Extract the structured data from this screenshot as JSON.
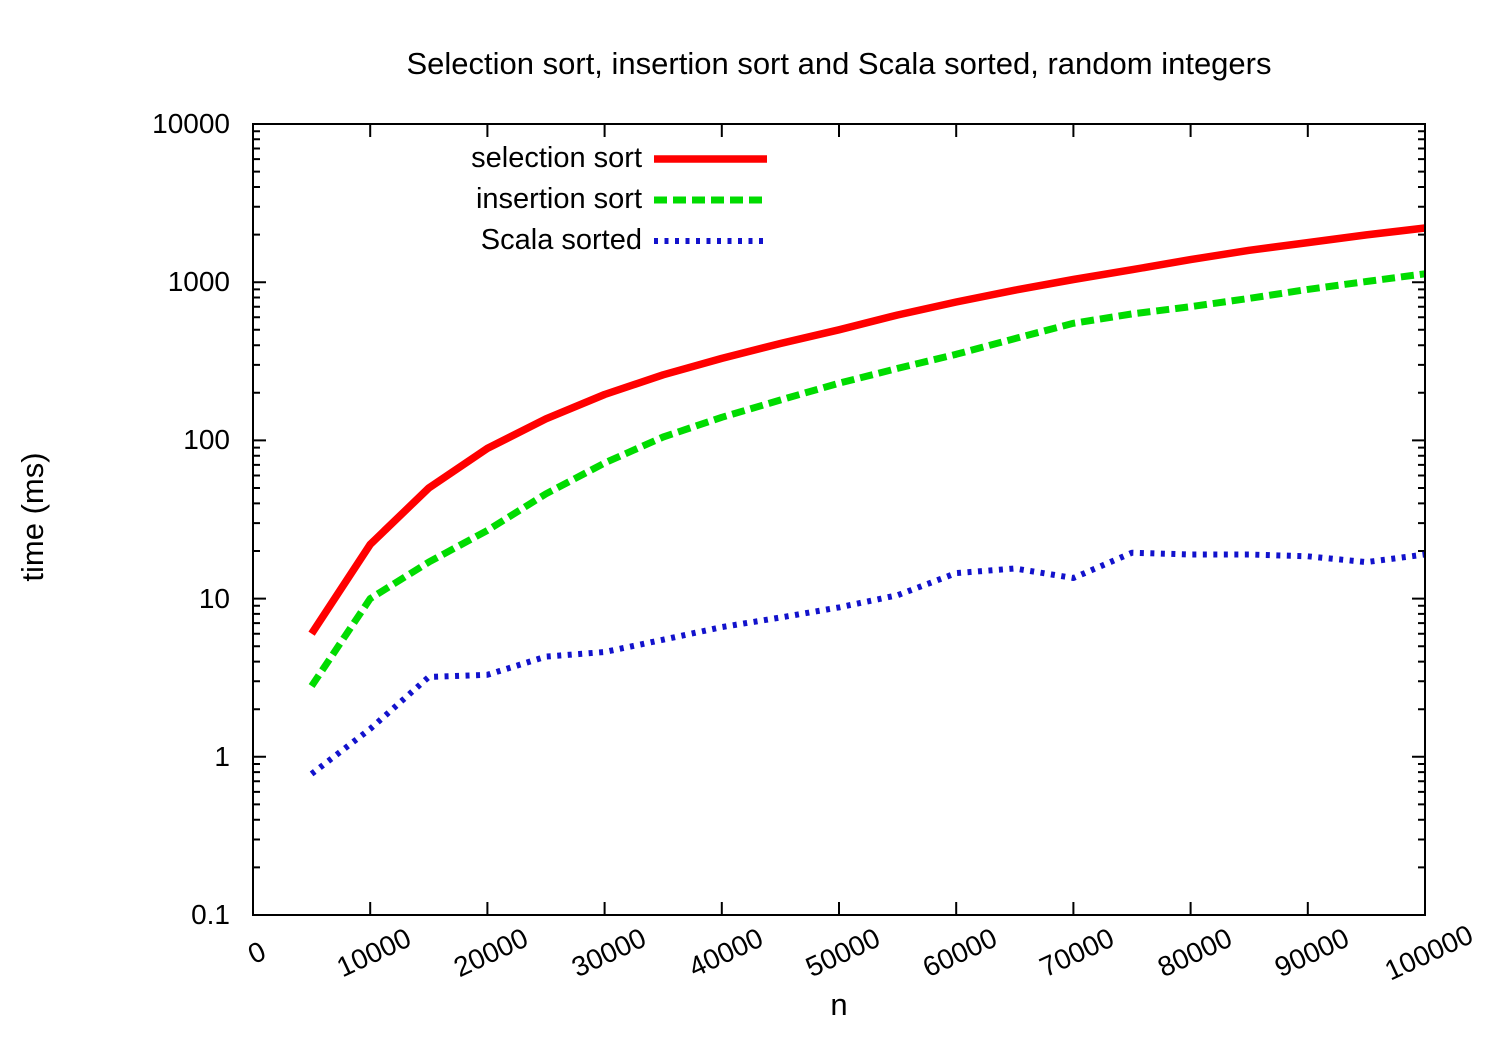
{
  "chart_data": {
    "type": "line",
    "title": "Selection sort, insertion sort and Scala sorted, random integers",
    "xlabel": "n",
    "ylabel": "time (ms)",
    "y_scale": "log",
    "grid": false,
    "legend_position": "top-left-inside",
    "xlim": [
      0,
      100000
    ],
    "ylim": [
      0.1,
      10000
    ],
    "x_ticks": [
      0,
      10000,
      20000,
      30000,
      40000,
      50000,
      60000,
      70000,
      80000,
      90000,
      100000
    ],
    "y_ticks": [
      0.1,
      1,
      10,
      100,
      1000,
      10000
    ],
    "x": [
      5000,
      10000,
      15000,
      20000,
      25000,
      30000,
      35000,
      40000,
      45000,
      50000,
      55000,
      60000,
      65000,
      70000,
      75000,
      80000,
      85000,
      90000,
      95000,
      100000
    ],
    "series": [
      {
        "name": "selection sort",
        "color": "#ff0000",
        "style": "solid",
        "values": [
          6,
          22,
          50,
          89,
          137,
          195,
          260,
          330,
          410,
          500,
          620,
          750,
          890,
          1040,
          1200,
          1390,
          1590,
          1780,
          1990,
          2200
        ]
      },
      {
        "name": "insertion sort",
        "color": "#00dc00",
        "style": "dashed",
        "values": [
          2.8,
          10,
          17,
          27,
          46,
          72,
          105,
          140,
          180,
          230,
          285,
          350,
          440,
          550,
          630,
          700,
          790,
          900,
          1010,
          1130
        ]
      },
      {
        "name": "Scala sorted",
        "color": "#1212cc",
        "style": "dotted",
        "values": [
          0.78,
          1.5,
          3.2,
          3.3,
          4.3,
          4.6,
          5.5,
          6.6,
          7.6,
          8.8,
          10.5,
          14.5,
          15.5,
          13.5,
          19.5,
          19,
          19,
          18.5,
          17,
          19
        ]
      }
    ]
  }
}
